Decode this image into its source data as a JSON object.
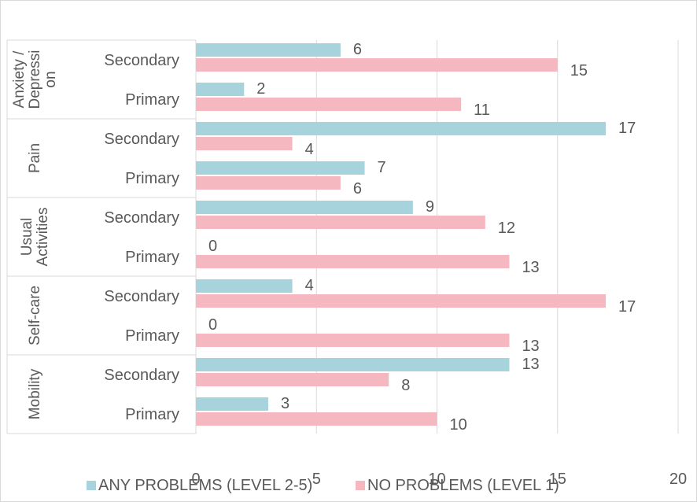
{
  "chart_data": {
    "type": "bar",
    "orientation": "horizontal",
    "title": "",
    "xlim": [
      0,
      20
    ],
    "x_ticks": [
      0,
      5,
      10,
      15,
      20
    ],
    "grid": true,
    "legend_position": "bottom",
    "colors": {
      "any_problems": "#a7d3dc",
      "no_problems": "#f5b8c0",
      "grid": "#d9d9d9",
      "text": "#595959"
    },
    "groups": [
      {
        "label": "Anxiety / Depression",
        "label_lines": [
          "Anxiety /",
          "Depressi",
          "on"
        ],
        "categories": [
          {
            "label": "Secondary",
            "any": 6,
            "none": 15
          },
          {
            "label": "Primary",
            "any": 2,
            "none": 11
          }
        ]
      },
      {
        "label": "Pain",
        "label_lines": [
          "Pain"
        ],
        "categories": [
          {
            "label": "Secondary",
            "any": 17,
            "none": 4
          },
          {
            "label": "Primary",
            "any": 7,
            "none": 6
          }
        ]
      },
      {
        "label": "Usual Activities",
        "label_lines": [
          "Usual",
          "Activities"
        ],
        "categories": [
          {
            "label": "Secondary",
            "any": 9,
            "none": 12
          },
          {
            "label": "Primary",
            "any": 0,
            "none": 13
          }
        ]
      },
      {
        "label": "Self-care",
        "label_lines": [
          "Self-care"
        ],
        "categories": [
          {
            "label": "Secondary",
            "any": 4,
            "none": 17
          },
          {
            "label": "Primary",
            "any": 0,
            "none": 13
          }
        ]
      },
      {
        "label": "Mobility",
        "label_lines": [
          "Mobility"
        ],
        "categories": [
          {
            "label": "Secondary",
            "any": 13,
            "none": 8
          },
          {
            "label": "Primary",
            "any": 3,
            "none": 10
          }
        ]
      }
    ],
    "series": [
      {
        "key": "any",
        "name": "ANY PROBLEMS (LEVEL 2-5)"
      },
      {
        "key": "none",
        "name": "NO PROBLEMS (LEVEL 1)"
      }
    ]
  }
}
